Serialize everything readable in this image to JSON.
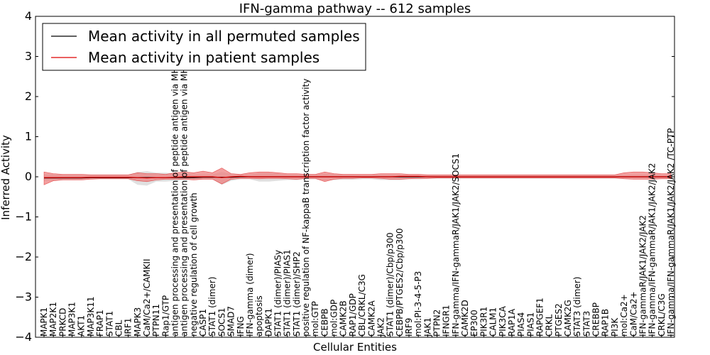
{
  "chart_data": {
    "type": "line",
    "title": "IFN-gamma pathway -- 612 samples",
    "xlabel": "Cellular Entities",
    "ylabel": "Inferred Activity",
    "ylim": [
      -4,
      4
    ],
    "yticks": [
      "4",
      "3",
      "2",
      "1",
      "0",
      "−1",
      "−2",
      "−3",
      "−4"
    ],
    "grid": false,
    "legend_position": "top-left",
    "categories": [
      "MAPK1",
      "MAP2K1",
      "PRKCD",
      "MAP3K1",
      "AKT1",
      "MAP3K11",
      "FRAP1",
      "STAT1",
      "CBL",
      "IRF1",
      "MAPK3",
      "CaM/Ca2+/CAMKII",
      "PTPN11",
      "Rap1/GTP",
      "antigen processing and presentation of peptide antigen via MHC class I",
      "antigen processing and presentation of peptide antigen via MHC class II",
      "negative regulation of cell growth",
      "CASP1",
      "STAT1 (dimer)",
      "SOCS1",
      "SMAD7",
      "IFNG",
      "IFN-gamma (dimer)",
      "apoptosis",
      "DAPK1",
      "STAT1 (dimer)/PIASy",
      "STAT1 (dimer)/PIAS1",
      "STAT1 (dimer)/SHP2",
      "positive regulation of NF-kappaB transcription factor activity",
      "mol:GTP",
      "CEBPB",
      "mol:GDP",
      "CAMK2B",
      "RAP1/GDP",
      "CBL/CRKL/C3G",
      "CAMK2A",
      "JAK2",
      "STAT1 (dimer)/Cbp/p300",
      "CEBPB/PTGES2/Cbp/p300",
      "IRF9",
      "mol:PI-3-4-5-P3",
      "JAK1",
      "PTPN2",
      "IFNGR1",
      "IFN-gamma/IFN-gammaR/JAK1/JAK2/SOCS1",
      "CAMK2D",
      "EP300",
      "PIK3R1",
      "CALM1",
      "PIK3CA",
      "RAP1A",
      "PIAS4",
      "PIAS1",
      "RAPGEF1",
      "CRKL",
      "PTGES2",
      "CAMK2G",
      "STAT3 (dimer)",
      "STAT3",
      "CREBBP",
      "RAP1B",
      "PI3K",
      "mol:Ca2+",
      "CaM/Ca2+",
      "IFN-gammaR/JAK1/JAK2/JAK2",
      "IFN-gamma/IFN-gammaR/JAK1/JAK2/JAK2",
      "CRKL/C3G",
      "IFN-gamma/IFN-gammaR/JAK1/JAK2/JAK2  /TC-PTP"
    ],
    "series": [
      {
        "name": "Mean activity in all permuted samples",
        "color": "#000000",
        "values": [
          -0.03,
          -0.03,
          -0.03,
          -0.03,
          -0.03,
          -0.02,
          -0.02,
          -0.02,
          -0.02,
          -0.02,
          -0.02,
          -0.02,
          -0.02,
          -0.02,
          -0.02,
          -0.02,
          -0.02,
          -0.01,
          -0.01,
          -0.01,
          -0.01,
          0.0,
          0.0,
          0.0,
          0.0,
          0.0,
          0.0,
          0.0,
          0.0,
          0.0,
          0.0,
          0.0,
          0.0,
          0.0,
          0.0,
          0.0,
          0.0,
          0.0,
          0.0,
          0.0,
          0.0,
          0.0,
          0.0,
          0.0,
          0.0,
          0.0,
          0.0,
          0.0,
          0.0,
          0.0,
          0.0,
          0.0,
          0.0,
          0.0,
          0.0,
          0.0,
          0.0,
          0.0,
          0.0,
          0.0,
          0.0,
          0.0,
          0.0,
          0.0,
          0.0,
          0.0,
          0.0,
          0.0
        ],
        "band_low": [
          -0.1,
          -0.1,
          -0.08,
          -0.08,
          -0.07,
          -0.06,
          -0.06,
          -0.06,
          -0.06,
          -0.06,
          -0.2,
          -0.22,
          -0.12,
          -0.12,
          -0.1,
          -0.08,
          -0.06,
          -0.06,
          -0.06,
          -0.2,
          -0.1,
          -0.06,
          -0.06,
          -0.12,
          -0.12,
          -0.1,
          -0.08,
          -0.08,
          -0.06,
          -0.06,
          -0.1,
          -0.08,
          -0.07,
          -0.07,
          -0.06,
          -0.06,
          -0.08,
          -0.08,
          -0.08,
          -0.06,
          -0.06,
          -0.05,
          -0.05,
          -0.05,
          -0.05,
          -0.05,
          -0.05,
          -0.05,
          -0.05,
          -0.05,
          -0.05,
          -0.05,
          -0.05,
          -0.05,
          -0.05,
          -0.05,
          -0.05,
          -0.05,
          -0.05,
          -0.05,
          -0.05,
          -0.05,
          -0.05,
          -0.05,
          -0.05,
          -0.05,
          -0.05,
          -0.05
        ],
        "band_high": [
          0.06,
          0.06,
          0.05,
          0.05,
          0.05,
          0.05,
          0.05,
          0.05,
          0.05,
          0.05,
          0.12,
          0.14,
          0.1,
          0.1,
          0.08,
          0.08,
          0.06,
          0.06,
          0.06,
          0.12,
          0.08,
          0.06,
          0.06,
          0.1,
          0.1,
          0.08,
          0.06,
          0.06,
          0.06,
          0.06,
          0.08,
          0.07,
          0.06,
          0.06,
          0.05,
          0.05,
          0.06,
          0.06,
          0.06,
          0.05,
          0.05,
          0.05,
          0.05,
          0.05,
          0.05,
          0.05,
          0.05,
          0.05,
          0.05,
          0.05,
          0.05,
          0.05,
          0.05,
          0.05,
          0.05,
          0.05,
          0.05,
          0.05,
          0.05,
          0.05,
          0.05,
          0.05,
          0.05,
          0.05,
          0.05,
          0.05,
          0.05,
          0.05
        ]
      },
      {
        "name": "Mean activity in patient samples",
        "color": "#dd0000",
        "band_color": "#ee8080",
        "values": [
          -0.02,
          -0.02,
          -0.02,
          -0.02,
          -0.02,
          -0.01,
          -0.01,
          -0.01,
          -0.01,
          -0.01,
          -0.02,
          -0.03,
          -0.02,
          -0.02,
          -0.01,
          0.0,
          0.0,
          0.0,
          0.0,
          -0.02,
          0.0,
          0.01,
          0.0,
          0.0,
          0.0,
          0.0,
          0.0,
          0.0,
          0.0,
          0.0,
          0.0,
          0.0,
          0.0,
          0.0,
          0.0,
          0.0,
          0.0,
          0.0,
          0.01,
          0.01,
          0.01,
          0.0,
          0.0,
          0.0,
          0.0,
          0.0,
          0.0,
          0.0,
          0.0,
          0.0,
          0.0,
          0.0,
          0.0,
          0.0,
          0.0,
          0.0,
          0.0,
          0.0,
          0.0,
          0.0,
          0.0,
          0.0,
          0.0,
          0.0,
          0.0,
          0.0,
          0.0,
          0.0
        ],
        "band_low": [
          -0.2,
          -0.1,
          -0.08,
          -0.08,
          -0.08,
          -0.06,
          -0.05,
          -0.05,
          -0.05,
          -0.05,
          -0.1,
          -0.12,
          -0.08,
          -0.06,
          -0.06,
          -0.06,
          -0.08,
          -0.06,
          -0.06,
          -0.18,
          -0.06,
          -0.04,
          -0.04,
          -0.05,
          -0.04,
          -0.04,
          -0.05,
          -0.06,
          -0.04,
          -0.04,
          -0.12,
          -0.06,
          -0.04,
          -0.04,
          -0.03,
          -0.03,
          -0.04,
          -0.06,
          -0.06,
          -0.05,
          -0.04,
          -0.04,
          -0.03,
          -0.03,
          -0.03,
          -0.03,
          -0.03,
          -0.03,
          -0.03,
          -0.03,
          -0.03,
          -0.03,
          -0.03,
          -0.03,
          -0.03,
          -0.03,
          -0.03,
          -0.03,
          -0.03,
          -0.03,
          -0.03,
          -0.03,
          -0.05,
          -0.06,
          -0.06,
          -0.06,
          -0.05,
          -0.05
        ],
        "band_high": [
          0.12,
          0.08,
          0.06,
          0.06,
          0.06,
          0.05,
          0.05,
          0.05,
          0.05,
          0.05,
          0.1,
          0.08,
          0.08,
          0.06,
          0.1,
          0.12,
          0.1,
          0.14,
          0.1,
          0.22,
          0.08,
          0.06,
          0.1,
          0.12,
          0.12,
          0.1,
          0.08,
          0.08,
          0.06,
          0.06,
          0.12,
          0.08,
          0.06,
          0.06,
          0.06,
          0.06,
          0.08,
          0.08,
          0.08,
          0.06,
          0.06,
          0.05,
          0.05,
          0.05,
          0.05,
          0.05,
          0.05,
          0.05,
          0.05,
          0.05,
          0.05,
          0.05,
          0.05,
          0.05,
          0.05,
          0.05,
          0.05,
          0.05,
          0.05,
          0.05,
          0.05,
          0.05,
          0.1,
          0.12,
          0.12,
          0.1,
          0.08,
          0.08
        ]
      }
    ]
  }
}
